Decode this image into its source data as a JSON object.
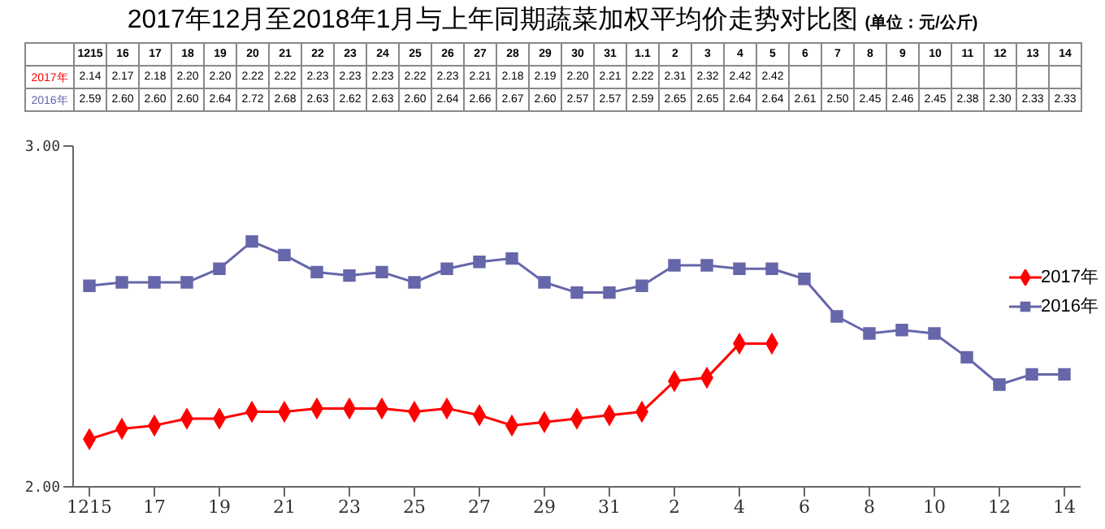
{
  "chart_data": {
    "type": "line",
    "title": "2017年12月至2018年1月与上年同期蔬菜加权平均价走势对比图",
    "subtitle": "(单位：元/公斤)",
    "categories": [
      "1215",
      "16",
      "17",
      "18",
      "19",
      "20",
      "21",
      "22",
      "23",
      "24",
      "25",
      "26",
      "27",
      "28",
      "29",
      "30",
      "31",
      "1.1",
      "2",
      "3",
      "4",
      "5",
      "6",
      "7",
      "8",
      "9",
      "10",
      "11",
      "12",
      "13",
      "14"
    ],
    "series": [
      {
        "name": "2017年",
        "color": "#ff0000",
        "marker": "diamond",
        "values": [
          2.14,
          2.17,
          2.18,
          2.2,
          2.2,
          2.22,
          2.22,
          2.23,
          2.23,
          2.23,
          2.22,
          2.23,
          2.21,
          2.18,
          2.19,
          2.2,
          2.21,
          2.22,
          2.31,
          2.32,
          2.42,
          2.42,
          null,
          null,
          null,
          null,
          null,
          null,
          null,
          null,
          null
        ],
        "value_labels": [
          "2.14",
          "2.17",
          "2.18",
          "2.20",
          "2.20",
          "2.22",
          "2.22",
          "2.23",
          "2.23",
          "2.23",
          "2.22",
          "2.23",
          "2.21",
          "2.18",
          "2.19",
          "2.20",
          "2.21",
          "2.22",
          "2.31",
          "2.32",
          "2.42",
          "2.42",
          null,
          null,
          null,
          null,
          null,
          null,
          null,
          null,
          null
        ]
      },
      {
        "name": "2016年",
        "color": "#6666aa",
        "marker": "square",
        "values": [
          2.59,
          2.6,
          2.6,
          2.6,
          2.64,
          2.72,
          2.68,
          2.63,
          2.62,
          2.63,
          2.6,
          2.64,
          2.66,
          2.67,
          2.6,
          2.57,
          2.57,
          2.59,
          2.65,
          2.65,
          2.64,
          2.64,
          2.61,
          2.5,
          2.45,
          2.46,
          2.45,
          2.38,
          2.3,
          2.33,
          2.33
        ],
        "value_labels": [
          "2.59",
          "2.60",
          "2.60",
          "2.60",
          "2.64",
          "2.72",
          "2.68",
          "2.63",
          "2.62",
          "2.63",
          "2.60",
          "2.64",
          "2.66",
          "2.67",
          "2.60",
          "2.57",
          "2.57",
          "2.59",
          "2.65",
          "2.65",
          "2.64",
          "2.64",
          "2.61",
          "2.50",
          "2.45",
          "2.46",
          "2.45",
          "2.38",
          "2.30",
          "2.33",
          "2.33"
        ]
      }
    ],
    "ylim": [
      2,
      3
    ],
    "yticks": [
      {
        "value": 2,
        "label": "2.00"
      },
      {
        "value": 3,
        "label": "3.00"
      }
    ],
    "grid": false,
    "legend": "right",
    "line_style": "solid"
  }
}
